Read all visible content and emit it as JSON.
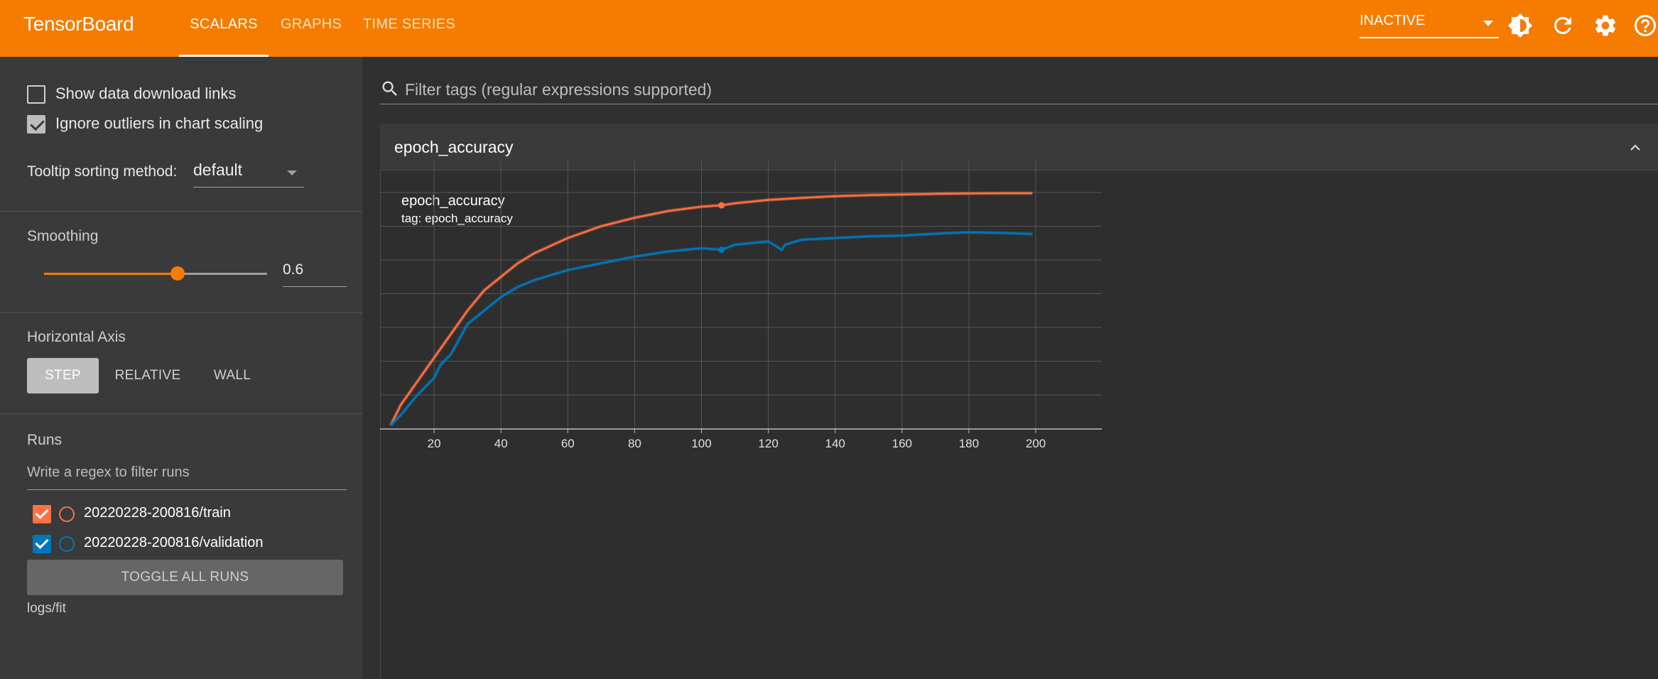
{
  "header": {
    "brand": "TensorBoard",
    "tabs": [
      {
        "label": "SCALARS",
        "active": true
      },
      {
        "label": "GRAPHS",
        "active": false
      },
      {
        "label": "TIME SERIES",
        "active": false
      }
    ],
    "status_select": "INACTIVE",
    "icons": [
      "theme-toggle-icon",
      "reload-icon",
      "settings-icon",
      "help-icon"
    ]
  },
  "sidebar": {
    "show_download_links": {
      "label": "Show data download links",
      "checked": false
    },
    "ignore_outliers": {
      "label": "Ignore outliers in chart scaling",
      "checked": true
    },
    "tooltip_sorting": {
      "label": "Tooltip sorting method:",
      "value": "default"
    },
    "smoothing": {
      "title": "Smoothing",
      "value": "0.6",
      "fraction": 0.6
    },
    "horizontal_axis": {
      "title": "Horizontal Axis",
      "options": [
        "STEP",
        "RELATIVE",
        "WALL"
      ],
      "selected": "STEP"
    },
    "runs": {
      "title": "Runs",
      "filter_placeholder": "Write a regex to filter runs",
      "items": [
        {
          "label": "20220228-200816/train",
          "color": "#ff7043",
          "checked": true
        },
        {
          "label": "20220228-200816/validation",
          "color": "#0077bb",
          "checked": true
        }
      ],
      "toggle_label": "TOGGLE ALL RUNS",
      "log_dir": "logs/fit"
    }
  },
  "main": {
    "filter_placeholder": "Filter tags (regular expressions supported)",
    "card_title": "epoch_accuracy",
    "chart_title": "epoch_accuracy",
    "chart_tag": "tag: epoch_accuracy"
  },
  "chart_data": {
    "type": "line",
    "title": "epoch_accuracy",
    "subtitle": "tag: epoch_accuracy",
    "xlabel": "",
    "ylabel": "",
    "x_ticks": [
      0,
      20,
      40,
      60,
      80,
      100,
      120,
      140,
      160,
      180,
      200
    ],
    "y_ticks": [
      0.4,
      0.5,
      0.6,
      0.7,
      0.8,
      0.9,
      1
    ],
    "xlim": [
      -20,
      220
    ],
    "ylim": [
      0.31,
      1.1
    ],
    "grid": true,
    "series": [
      {
        "name": "20220228-200816/train",
        "color": "#ff7043",
        "x": [
          7,
          10,
          15,
          20,
          25,
          30,
          35,
          40,
          45,
          50,
          60,
          70,
          80,
          90,
          100,
          106,
          110,
          120,
          130,
          140,
          150,
          160,
          170,
          180,
          190,
          199
        ],
        "y": [
          0.31,
          0.37,
          0.44,
          0.51,
          0.58,
          0.65,
          0.71,
          0.75,
          0.79,
          0.82,
          0.865,
          0.9,
          0.925,
          0.945,
          0.958,
          0.962,
          0.968,
          0.978,
          0.984,
          0.989,
          0.992,
          0.994,
          0.996,
          0.997,
          0.998,
          0.998
        ],
        "highlight": {
          "x": 106,
          "y": 0.962
        }
      },
      {
        "name": "20220228-200816/validation",
        "color": "#0077bb",
        "x": [
          7,
          10,
          15,
          20,
          22,
          25,
          30,
          35,
          40,
          45,
          50,
          60,
          70,
          80,
          90,
          100,
          106,
          110,
          120,
          124,
          125,
          130,
          140,
          150,
          160,
          170,
          180,
          190,
          199
        ],
        "y": [
          0.31,
          0.34,
          0.4,
          0.45,
          0.49,
          0.52,
          0.61,
          0.65,
          0.69,
          0.72,
          0.74,
          0.77,
          0.79,
          0.81,
          0.825,
          0.835,
          0.83,
          0.845,
          0.855,
          0.83,
          0.845,
          0.86,
          0.865,
          0.87,
          0.872,
          0.878,
          0.882,
          0.88,
          0.877
        ],
        "highlight": {
          "x": 106,
          "y": 0.83
        }
      }
    ]
  }
}
